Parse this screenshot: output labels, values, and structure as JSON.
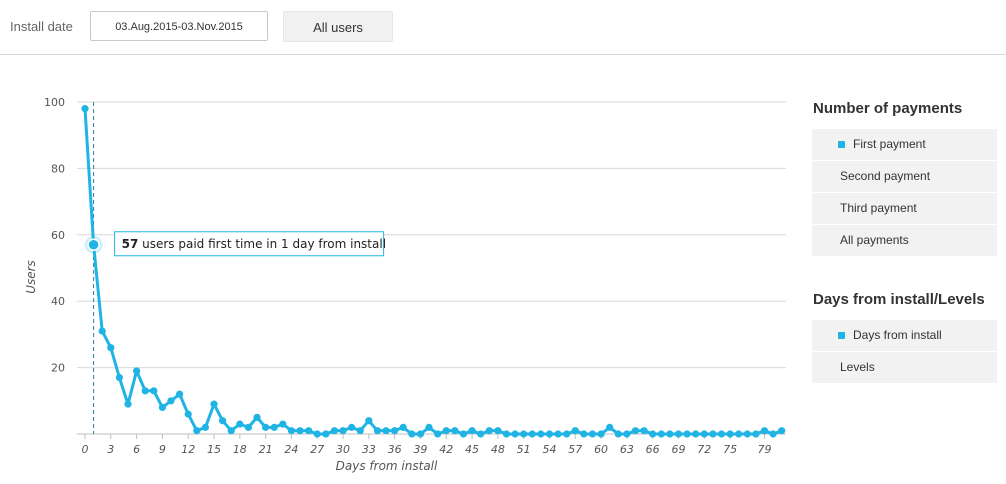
{
  "filters": {
    "install_date_label": "Install date",
    "date_range": "03.Aug.2015-03.Nov.2015",
    "segment": "All users"
  },
  "panels": {
    "payments": {
      "title": "Number of payments",
      "options": [
        "First payment",
        "Second payment",
        "Third payment",
        "All payments"
      ],
      "selected": 0
    },
    "axis_mode": {
      "title": "Days from install/Levels",
      "options": [
        "Days from install",
        "Levels"
      ],
      "selected": 0
    }
  },
  "chart_data": {
    "type": "line",
    "xlabel": "Days from install",
    "ylabel": "Users",
    "ylim": [
      0,
      100
    ],
    "yticks": [
      20,
      40,
      60,
      80,
      100
    ],
    "xticks": [
      0,
      3,
      6,
      9,
      12,
      15,
      18,
      21,
      24,
      27,
      30,
      33,
      36,
      39,
      42,
      45,
      48,
      51,
      54,
      57,
      60,
      63,
      66,
      69,
      72,
      75,
      79
    ],
    "grid": "horizontal",
    "color": "#1fb4e4",
    "x": [
      0,
      1,
      2,
      3,
      4,
      5,
      6,
      7,
      8,
      9,
      10,
      11,
      12,
      13,
      14,
      15,
      16,
      17,
      18,
      19,
      20,
      21,
      22,
      23,
      24,
      25,
      26,
      27,
      28,
      29,
      30,
      31,
      32,
      33,
      34,
      35,
      36,
      37,
      38,
      39,
      40,
      41,
      42,
      43,
      44,
      45,
      46,
      47,
      48,
      49,
      50,
      51,
      52,
      53,
      54,
      55,
      56,
      57,
      58,
      59,
      60,
      61,
      62,
      63,
      64,
      65,
      66,
      67,
      68,
      69,
      70,
      71,
      72,
      73,
      74,
      75,
      76,
      77,
      78,
      79,
      80,
      81
    ],
    "values": [
      98,
      57,
      31,
      26,
      17,
      9,
      19,
      13,
      13,
      8,
      10,
      12,
      6,
      1,
      2,
      9,
      4,
      1,
      3,
      2,
      5,
      2,
      2,
      3,
      1,
      1,
      1,
      0,
      0,
      1,
      1,
      2,
      1,
      4,
      1,
      1,
      1,
      2,
      0,
      0,
      2,
      0,
      1,
      1,
      0,
      1,
      0,
      1,
      1,
      0,
      0,
      0,
      0,
      0,
      0,
      0,
      0,
      1,
      0,
      0,
      0,
      2,
      0,
      0,
      1,
      1,
      0,
      0,
      0,
      0,
      0,
      0,
      0,
      0,
      0,
      0,
      0,
      0,
      0,
      1,
      0,
      1
    ],
    "highlight": {
      "x": 1,
      "count": "57",
      "text": "users paid first time in 1 day from install"
    }
  }
}
